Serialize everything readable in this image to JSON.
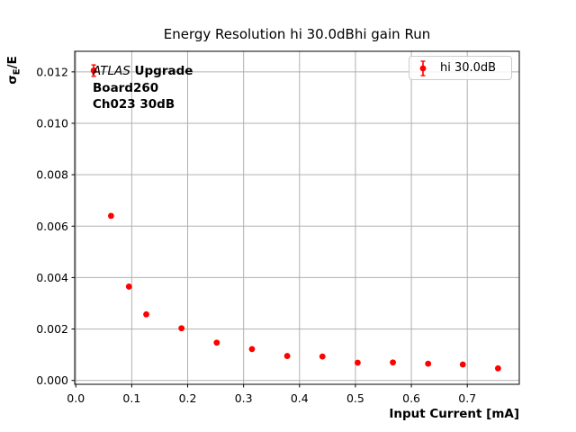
{
  "colors": {
    "accent": "#ff0000",
    "grid": "#b0b0b0",
    "spine": "#000000",
    "legend_border": "#cccccc"
  },
  "annotation": {
    "experiment": "ATLAS",
    "stage": "Upgrade",
    "board": "Board260",
    "channel": "Ch023 30dB"
  },
  "ylabel_parts": {
    "sigma": "σ",
    "subscript": "E",
    "rest": "/E"
  },
  "chart_data": {
    "type": "scatter",
    "title": "Energy Resolution hi 30.0dBhi gain Run",
    "xlabel": "Input Current [mA]",
    "ylabel": "σE/E",
    "xlim": [
      -0.002,
      0.793
    ],
    "ylim": [
      -0.00015,
      0.0128
    ],
    "xticks": [
      0.0,
      0.1,
      0.2,
      0.3,
      0.4,
      0.5,
      0.6,
      0.7
    ],
    "xtick_labels": [
      "0.0",
      "0.1",
      "0.2",
      "0.3",
      "0.4",
      "0.5",
      "0.6",
      "0.7"
    ],
    "yticks": [
      0.0,
      0.002,
      0.004,
      0.006,
      0.008,
      0.01,
      0.012
    ],
    "ytick_labels": [
      "0.000",
      "0.002",
      "0.004",
      "0.006",
      "0.008",
      "0.010",
      "0.012"
    ],
    "grid": true,
    "legend_position": "upper right",
    "series": [
      {
        "name": "hi 30.0dB",
        "color": "#ff0000",
        "marker": "circle",
        "x": [
          0.032,
          0.063,
          0.095,
          0.126,
          0.189,
          0.252,
          0.315,
          0.378,
          0.441,
          0.504,
          0.567,
          0.63,
          0.692,
          0.755
        ],
        "y": [
          0.01205,
          0.0064,
          0.00365,
          0.00257,
          0.00203,
          0.00147,
          0.00122,
          0.00095,
          0.00093,
          0.00069,
          0.0007,
          0.00065,
          0.00062,
          0.00047
        ],
        "yerr": [
          0.00022,
          7e-05,
          5e-05,
          4e-05,
          3e-05,
          3e-05,
          3e-05,
          2e-05,
          2e-05,
          2e-05,
          2e-05,
          2e-05,
          2e-05,
          2e-05
        ]
      }
    ]
  }
}
